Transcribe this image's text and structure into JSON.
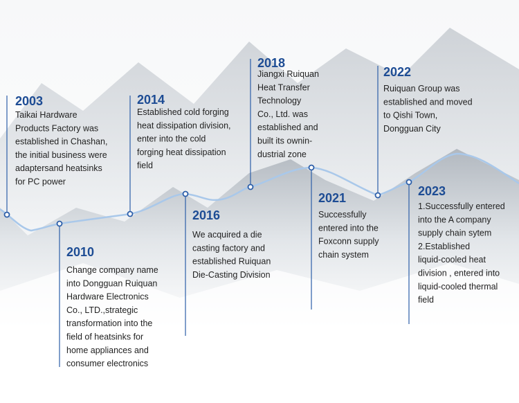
{
  "events": [
    {
      "year": "2003",
      "lines": [
        "Taikai Hardware",
        "Products Factory was",
        "established in Chashan,",
        "the initial business were",
        "adaptersand heatsinks",
        "for PC power"
      ]
    },
    {
      "year": "2010",
      "lines": [
        "Change company name",
        "into Dongguan Ruiquan",
        "Hardware Electronics",
        "Co., LTD.,strategic",
        "transformation into the",
        "field of heatsinks for",
        "home appliances and",
        "consumer electronics"
      ]
    },
    {
      "year": "2014",
      "lines": [
        "Established cold forging",
        "heat dissipation division,",
        "enter into the cold",
        "forging heat dissipation",
        "field"
      ]
    },
    {
      "year": "2016",
      "lines": [
        "We acquired a die",
        "casting factory and",
        "established Ruiquan",
        "Die-Casting Division"
      ]
    },
    {
      "year": "2018",
      "lines": [
        "Jiangxi Ruiquan",
        "Heat Transfer",
        "Technology",
        "Co., Ltd. was",
        "established and",
        "built its ownin-",
        "dustrial zone"
      ]
    },
    {
      "year": "2021",
      "lines": [
        "Successfully",
        "entered into the",
        "Foxconn supply",
        "chain system"
      ]
    },
    {
      "year": "2022",
      "lines": [
        "Ruiquan Group was",
        "established and moved",
        "to Qishi Town,",
        "Dongguan City"
      ]
    },
    {
      "year": "2023",
      "lines": [
        "1.Successfully entered",
        "into the A company",
        "supply chain sytem",
        "2.Established",
        "liquid-cooled heat",
        "division , entered into",
        "liquid-cooled thermal",
        "field"
      ]
    }
  ]
}
